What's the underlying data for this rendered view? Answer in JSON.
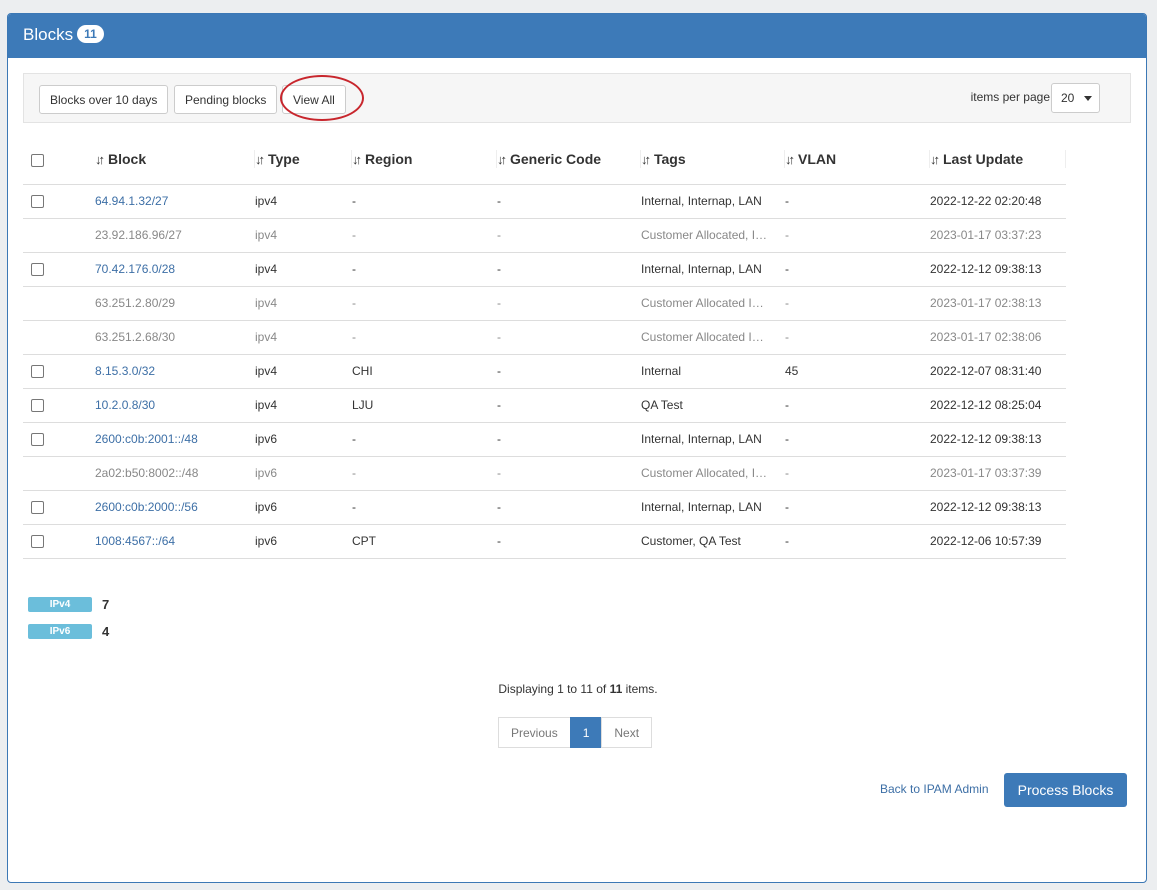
{
  "header": {
    "title": "Blocks",
    "count": "11"
  },
  "toolbar": {
    "filters": [
      "Blocks over 10 days",
      "Pending blocks",
      "View All"
    ],
    "items_per_page_label": "items per page",
    "items_per_page": "20"
  },
  "table": {
    "columns": [
      "Block",
      "Type",
      "Region",
      "Generic Code",
      "Tags",
      "VLAN",
      "Last Update"
    ],
    "rows": [
      {
        "checkbox": true,
        "block": "64.94.1.32/27",
        "type": "ipv4",
        "region": "-",
        "generic": "-",
        "tags": "Internal, Internap, LAN",
        "vlan": "-",
        "updated": "2022-12-22 02:20:48"
      },
      {
        "checkbox": false,
        "block": "23.92.186.96/27",
        "type": "ipv4",
        "region": "-",
        "generic": "-",
        "tags": "Customer Allocated, I…",
        "vlan": "-",
        "updated": "2023-01-17 03:37:23"
      },
      {
        "checkbox": true,
        "block": "70.42.176.0/28",
        "type": "ipv4",
        "region": "-",
        "generic": "-",
        "tags": "Internal, Internap, LAN",
        "vlan": "-",
        "updated": "2022-12-12 09:38:13"
      },
      {
        "checkbox": false,
        "block": "63.251.2.80/29",
        "type": "ipv4",
        "region": "-",
        "generic": "-",
        "tags": "Customer Allocated I…",
        "vlan": "-",
        "updated": "2023-01-17 02:38:13"
      },
      {
        "checkbox": false,
        "block": "63.251.2.68/30",
        "type": "ipv4",
        "region": "-",
        "generic": "-",
        "tags": "Customer Allocated I…",
        "vlan": "-",
        "updated": "2023-01-17 02:38:06"
      },
      {
        "checkbox": true,
        "block": "8.15.3.0/32",
        "type": "ipv4",
        "region": "CHI",
        "generic": "-",
        "tags": "Internal",
        "vlan": "45",
        "updated": "2022-12-07 08:31:40"
      },
      {
        "checkbox": true,
        "block": "10.2.0.8/30",
        "type": "ipv4",
        "region": "LJU",
        "generic": "-",
        "tags": "QA Test",
        "vlan": "-",
        "updated": "2022-12-12 08:25:04"
      },
      {
        "checkbox": true,
        "block": "2600:c0b:2001::/48",
        "type": "ipv6",
        "region": "-",
        "generic": "-",
        "tags": "Internal, Internap, LAN",
        "vlan": "-",
        "updated": "2022-12-12 09:38:13"
      },
      {
        "checkbox": false,
        "block": "2a02:b50:8002::/48",
        "type": "ipv6",
        "region": "-",
        "generic": "-",
        "tags": "Customer Allocated, I…",
        "vlan": "-",
        "updated": "2023-01-17 03:37:39"
      },
      {
        "checkbox": true,
        "block": "2600:c0b:2000::/56",
        "type": "ipv6",
        "region": "-",
        "generic": "-",
        "tags": "Internal, Internap, LAN",
        "vlan": "-",
        "updated": "2022-12-12 09:38:13"
      },
      {
        "checkbox": true,
        "block": "1008:4567::/64",
        "type": "ipv6",
        "region": "CPT",
        "generic": "-",
        "tags": "Customer, QA Test",
        "vlan": "-",
        "updated": "2022-12-06 10:57:39"
      }
    ]
  },
  "summary": [
    {
      "label": "IPv4",
      "count": "7"
    },
    {
      "label": "IPv6",
      "count": "4"
    }
  ],
  "footer": {
    "display_prefix": "Displaying 1 to 11 of ",
    "display_total": "11",
    "display_suffix": " items.",
    "prev": "Previous",
    "page": "1",
    "next": "Next",
    "back": "Back to IPAM Admin",
    "process": "Process Blocks"
  },
  "colors": {
    "primary": "#3d7ab8",
    "label": "#6bbedb",
    "highlight": "#c8262d"
  }
}
